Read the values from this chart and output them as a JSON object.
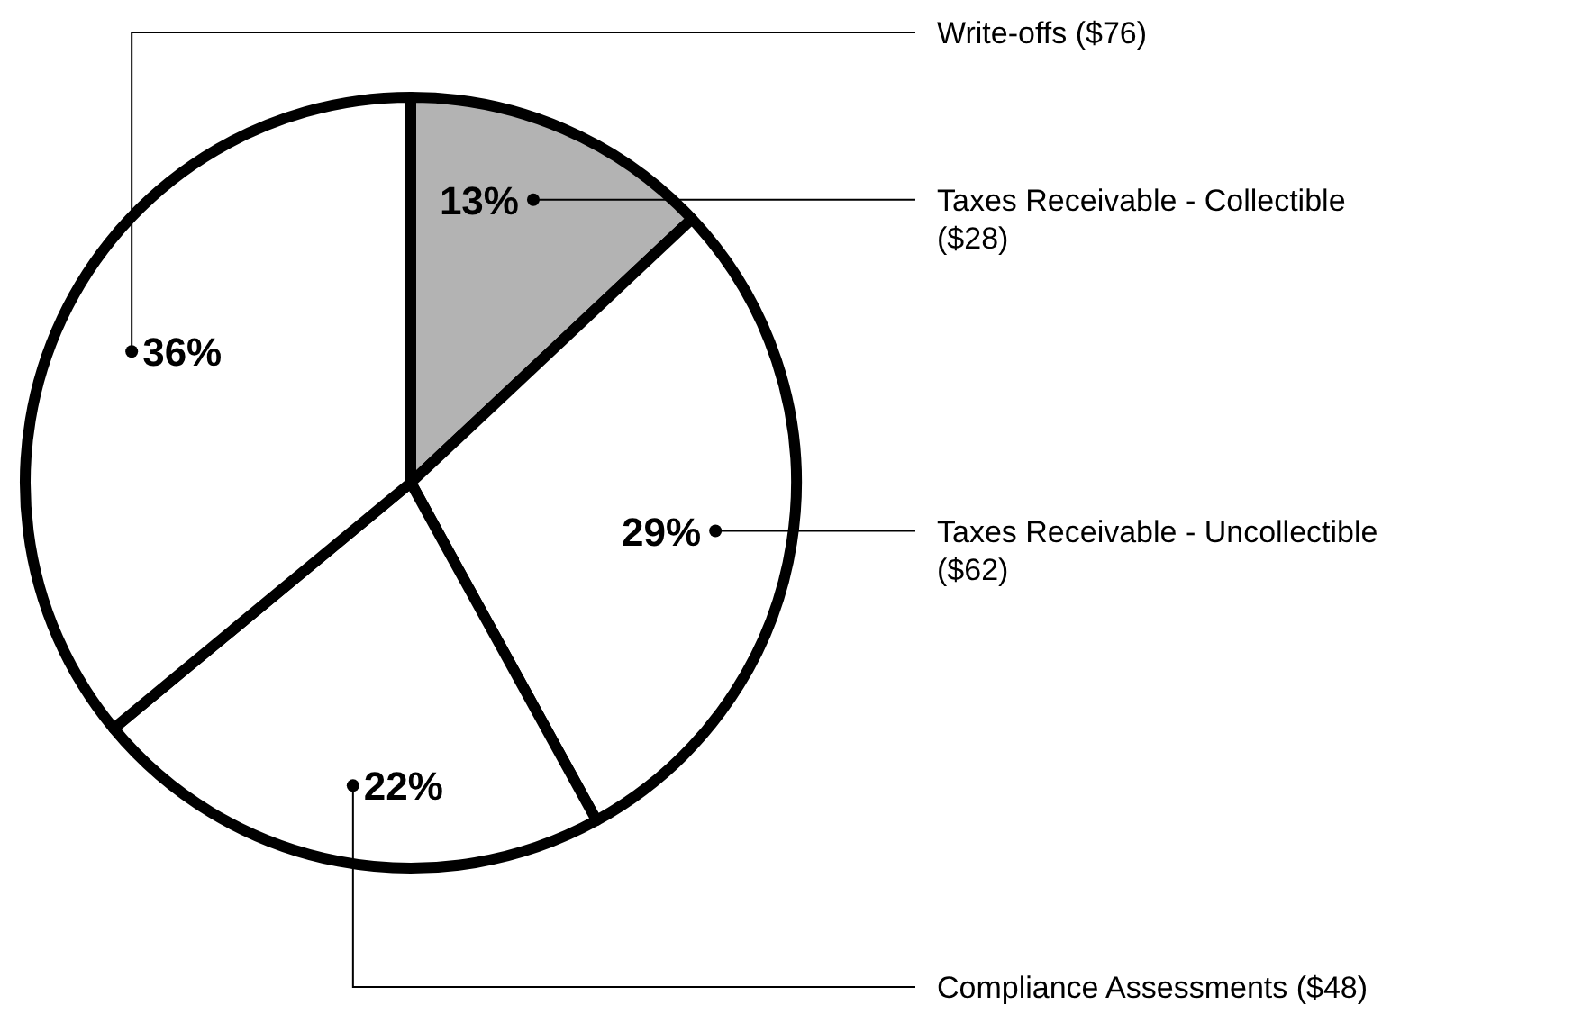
{
  "chart_data": {
    "type": "pie",
    "categories": [
      "Taxes Receivable - Collectible ($28)",
      "Taxes Receivable - Uncollectible ($62)",
      "Compliance Assessments ($48)",
      "Write-offs ($76)"
    ],
    "values": [
      13,
      29,
      22,
      36
    ],
    "colors": [
      "#b3b3b3",
      "#ffffff",
      "#ffffff",
      "#ffffff"
    ],
    "value_labels": [
      "13%",
      "29%",
      "22%",
      "36%"
    ]
  }
}
